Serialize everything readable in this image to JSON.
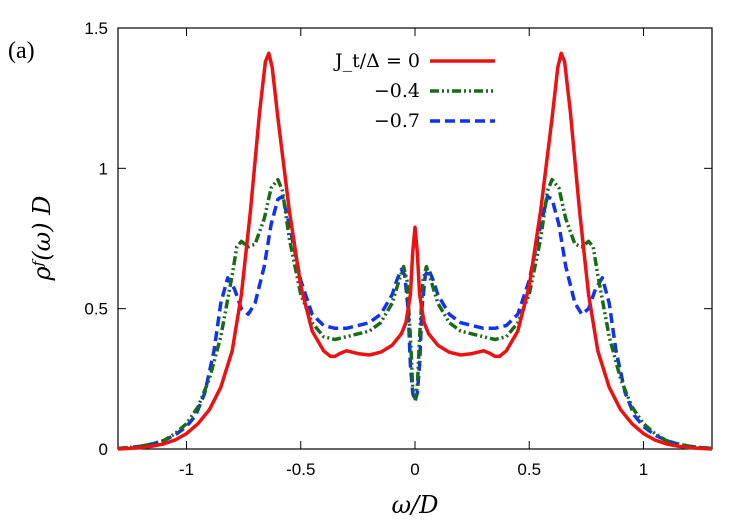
{
  "chart_data": {
    "type": "line",
    "panel_label": "(a)",
    "xlabel": "ω/D",
    "ylabel": "ρᶠ(ω) D",
    "xlim": [
      -1.3,
      1.3
    ],
    "ylim": [
      0,
      1.5
    ],
    "xticks": [
      -1,
      -0.5,
      0,
      0.5,
      1
    ],
    "xtick_labels": [
      "-1",
      "-0.5",
      "0",
      "0.5",
      "1"
    ],
    "yticks": [
      0,
      0.5,
      1,
      1.5
    ],
    "ytick_labels": [
      "0",
      "0.5",
      "1",
      "1.5"
    ],
    "grid": false,
    "legend_position": "top-center",
    "series": [
      {
        "name": "J_t/Δ = 0",
        "color": "#ee1111",
        "style": "solid",
        "points": [
          [
            0.0,
            0.79
          ],
          [
            0.01,
            0.7
          ],
          [
            0.02,
            0.55
          ],
          [
            0.04,
            0.45
          ],
          [
            0.06,
            0.41
          ],
          [
            0.1,
            0.37
          ],
          [
            0.15,
            0.345
          ],
          [
            0.2,
            0.335
          ],
          [
            0.25,
            0.34
          ],
          [
            0.3,
            0.35
          ],
          [
            0.33,
            0.34
          ],
          [
            0.35,
            0.33
          ],
          [
            0.37,
            0.33
          ],
          [
            0.4,
            0.35
          ],
          [
            0.45,
            0.42
          ],
          [
            0.5,
            0.58
          ],
          [
            0.55,
            0.85
          ],
          [
            0.6,
            1.18
          ],
          [
            0.625,
            1.36
          ],
          [
            0.64,
            1.41
          ],
          [
            0.655,
            1.38
          ],
          [
            0.68,
            1.2
          ],
          [
            0.72,
            0.85
          ],
          [
            0.76,
            0.55
          ],
          [
            0.8,
            0.35
          ],
          [
            0.85,
            0.22
          ],
          [
            0.9,
            0.14
          ],
          [
            0.95,
            0.09
          ],
          [
            1.0,
            0.055
          ],
          [
            1.05,
            0.032
          ],
          [
            1.1,
            0.018
          ],
          [
            1.15,
            0.01
          ],
          [
            1.2,
            0.005
          ],
          [
            1.25,
            0.002
          ],
          [
            1.3,
            0.0
          ]
        ]
      },
      {
        "name": "−0.4",
        "color": "#1a6a1a",
        "style": "dash-dot-dot",
        "points": [
          [
            0.0,
            0.18
          ],
          [
            0.01,
            0.22
          ],
          [
            0.02,
            0.4
          ],
          [
            0.035,
            0.6
          ],
          [
            0.05,
            0.65
          ],
          [
            0.07,
            0.6
          ],
          [
            0.1,
            0.52
          ],
          [
            0.15,
            0.45
          ],
          [
            0.2,
            0.42
          ],
          [
            0.3,
            0.4
          ],
          [
            0.35,
            0.39
          ],
          [
            0.4,
            0.4
          ],
          [
            0.45,
            0.45
          ],
          [
            0.5,
            0.55
          ],
          [
            0.55,
            0.75
          ],
          [
            0.58,
            0.92
          ],
          [
            0.6,
            0.96
          ],
          [
            0.63,
            0.93
          ],
          [
            0.66,
            0.82
          ],
          [
            0.7,
            0.73
          ],
          [
            0.73,
            0.72
          ],
          [
            0.76,
            0.74
          ],
          [
            0.78,
            0.72
          ],
          [
            0.8,
            0.62
          ],
          [
            0.85,
            0.4
          ],
          [
            0.9,
            0.25
          ],
          [
            0.95,
            0.15
          ],
          [
            1.0,
            0.09
          ],
          [
            1.05,
            0.055
          ],
          [
            1.1,
            0.03
          ],
          [
            1.15,
            0.018
          ],
          [
            1.2,
            0.01
          ],
          [
            1.25,
            0.005
          ],
          [
            1.3,
            0.002
          ]
        ]
      },
      {
        "name": "−0.7",
        "color": "#1133ee",
        "style": "dashed",
        "points": [
          [
            0.0,
            0.17
          ],
          [
            0.01,
            0.2
          ],
          [
            0.02,
            0.3
          ],
          [
            0.03,
            0.5
          ],
          [
            0.045,
            0.62
          ],
          [
            0.06,
            0.64
          ],
          [
            0.08,
            0.6
          ],
          [
            0.1,
            0.55
          ],
          [
            0.15,
            0.48
          ],
          [
            0.2,
            0.45
          ],
          [
            0.3,
            0.43
          ],
          [
            0.35,
            0.43
          ],
          [
            0.4,
            0.44
          ],
          [
            0.45,
            0.48
          ],
          [
            0.5,
            0.6
          ],
          [
            0.55,
            0.8
          ],
          [
            0.58,
            0.9
          ],
          [
            0.6,
            0.89
          ],
          [
            0.63,
            0.8
          ],
          [
            0.66,
            0.65
          ],
          [
            0.7,
            0.52
          ],
          [
            0.73,
            0.48
          ],
          [
            0.76,
            0.5
          ],
          [
            0.79,
            0.57
          ],
          [
            0.82,
            0.61
          ],
          [
            0.85,
            0.52
          ],
          [
            0.88,
            0.35
          ],
          [
            0.92,
            0.2
          ],
          [
            0.96,
            0.12
          ],
          [
            1.0,
            0.08
          ],
          [
            1.05,
            0.05
          ],
          [
            1.1,
            0.03
          ],
          [
            1.15,
            0.018
          ],
          [
            1.2,
            0.01
          ],
          [
            1.25,
            0.005
          ],
          [
            1.3,
            0.002
          ]
        ]
      }
    ]
  }
}
